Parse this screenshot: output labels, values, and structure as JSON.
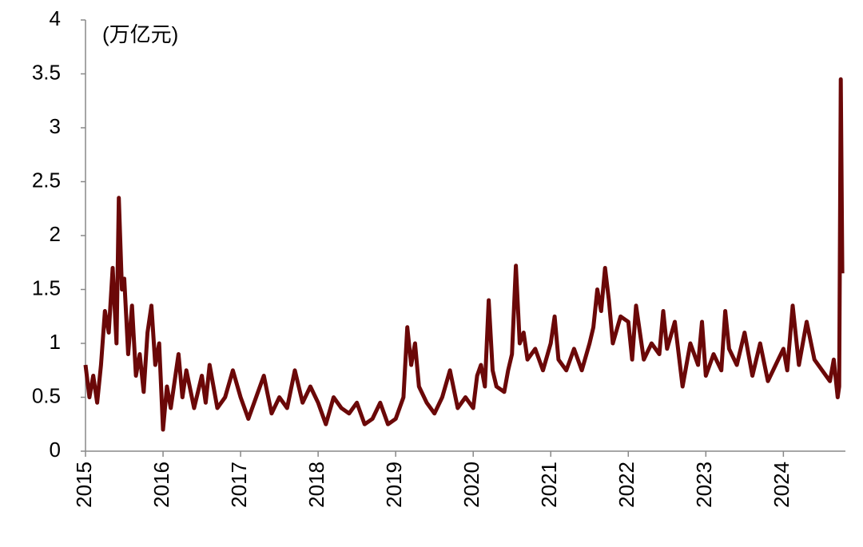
{
  "chart_data": {
    "type": "line",
    "annotation": "(万亿元)",
    "x": [
      2015.0,
      2015.05,
      2015.1,
      2015.15,
      2015.2,
      2015.25,
      2015.3,
      2015.35,
      2015.4,
      2015.43,
      2015.47,
      2015.5,
      2015.55,
      2015.6,
      2015.65,
      2015.7,
      2015.75,
      2015.8,
      2015.85,
      2015.9,
      2015.95,
      2016.0,
      2016.05,
      2016.1,
      2016.2,
      2016.25,
      2016.3,
      2016.4,
      2016.5,
      2016.55,
      2016.6,
      2016.7,
      2016.8,
      2016.9,
      2017.0,
      2017.1,
      2017.2,
      2017.3,
      2017.4,
      2017.5,
      2017.6,
      2017.7,
      2017.8,
      2017.9,
      2018.0,
      2018.1,
      2018.2,
      2018.3,
      2018.4,
      2018.5,
      2018.6,
      2018.7,
      2018.8,
      2018.9,
      2019.0,
      2019.1,
      2019.15,
      2019.2,
      2019.25,
      2019.3,
      2019.4,
      2019.5,
      2019.6,
      2019.7,
      2019.8,
      2019.9,
      2020.0,
      2020.05,
      2020.1,
      2020.15,
      2020.2,
      2020.25,
      2020.3,
      2020.4,
      2020.45,
      2020.5,
      2020.55,
      2020.6,
      2020.65,
      2020.7,
      2020.8,
      2020.9,
      2021.0,
      2021.05,
      2021.1,
      2021.2,
      2021.3,
      2021.4,
      2021.5,
      2021.55,
      2021.6,
      2021.65,
      2021.7,
      2021.75,
      2021.8,
      2021.9,
      2022.0,
      2022.05,
      2022.1,
      2022.2,
      2022.3,
      2022.4,
      2022.45,
      2022.5,
      2022.6,
      2022.7,
      2022.8,
      2022.9,
      2022.95,
      2023.0,
      2023.1,
      2023.2,
      2023.25,
      2023.3,
      2023.4,
      2023.5,
      2023.6,
      2023.7,
      2023.8,
      2023.9,
      2024.0,
      2024.05,
      2024.12,
      2024.2,
      2024.3,
      2024.4,
      2024.5,
      2024.6,
      2024.65,
      2024.7,
      2024.72,
      2024.74,
      2024.76
    ],
    "series": [
      {
        "color": "#6b0808",
        "values": [
          0.8,
          0.5,
          0.7,
          0.45,
          0.8,
          1.3,
          1.1,
          1.7,
          1.0,
          2.35,
          1.5,
          1.6,
          0.9,
          1.35,
          0.7,
          0.9,
          0.55,
          1.1,
          1.35,
          0.8,
          1.0,
          0.2,
          0.6,
          0.4,
          0.9,
          0.5,
          0.75,
          0.4,
          0.7,
          0.45,
          0.8,
          0.4,
          0.5,
          0.75,
          0.5,
          0.3,
          0.5,
          0.7,
          0.35,
          0.5,
          0.4,
          0.75,
          0.45,
          0.6,
          0.45,
          0.25,
          0.5,
          0.4,
          0.35,
          0.45,
          0.25,
          0.3,
          0.45,
          0.25,
          0.3,
          0.5,
          1.15,
          0.8,
          1.0,
          0.6,
          0.45,
          0.35,
          0.5,
          0.75,
          0.4,
          0.5,
          0.4,
          0.7,
          0.8,
          0.6,
          1.4,
          0.75,
          0.6,
          0.55,
          0.75,
          0.9,
          1.72,
          1.0,
          1.1,
          0.85,
          0.95,
          0.75,
          1.0,
          1.25,
          0.85,
          0.75,
          0.95,
          0.75,
          1.0,
          1.15,
          1.5,
          1.3,
          1.7,
          1.4,
          1.0,
          1.25,
          1.2,
          0.85,
          1.35,
          0.85,
          1.0,
          0.9,
          1.3,
          0.95,
          1.2,
          0.6,
          1.0,
          0.8,
          1.2,
          0.7,
          0.9,
          0.75,
          1.3,
          0.95,
          0.8,
          1.1,
          0.7,
          1.0,
          0.65,
          0.8,
          0.95,
          0.75,
          1.35,
          0.8,
          1.2,
          0.85,
          0.75,
          0.65,
          0.85,
          0.5,
          0.6,
          3.45,
          1.65
        ]
      }
    ],
    "xlim": [
      2015,
      2024.8
    ],
    "xticks": [
      2015,
      2016,
      2017,
      2018,
      2019,
      2020,
      2021,
      2022,
      2023,
      2024
    ],
    "ylim": [
      0,
      4
    ],
    "yticks": [
      0,
      0.5,
      1,
      1.5,
      2,
      2.5,
      3,
      3.5,
      4
    ]
  }
}
